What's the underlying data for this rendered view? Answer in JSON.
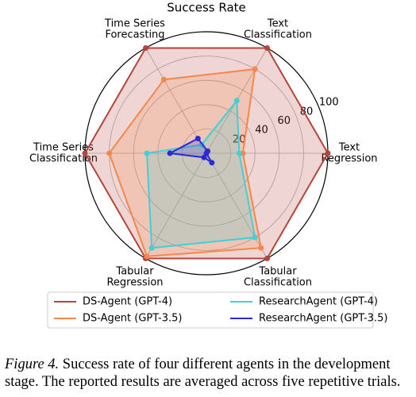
{
  "chart_data": {
    "type": "radar",
    "title": "Success Rate",
    "categories": [
      [
        "Text",
        "Regression"
      ],
      [
        "Text",
        "Classification"
      ],
      [
        "Time Series",
        "Forecasting"
      ],
      [
        "Time Series",
        "Classification"
      ],
      [
        "Tabular",
        "Regression"
      ],
      [
        "Tabular",
        "Classification"
      ]
    ],
    "rlim": [
      0,
      100
    ],
    "rticks": [
      20,
      40,
      60,
      80,
      100
    ],
    "grid": true,
    "series": [
      {
        "name": "DS-Agent (GPT-4)",
        "color": "#b5443a",
        "values": [
          100,
          100,
          100,
          100,
          100,
          100
        ]
      },
      {
        "name": "DS-Agent (GPT-3.5)",
        "color": "#f4874b",
        "values": [
          30,
          80,
          70,
          80,
          98,
          90
        ]
      },
      {
        "name": "ResearchAgent (GPT-4)",
        "color": "#3fd0d8",
        "values": [
          27,
          50,
          8,
          49,
          90,
          80
        ]
      },
      {
        "name": "ResearchAgent (GPT-3.5)",
        "color": "#2b2bd6",
        "values": [
          0,
          2,
          14,
          30,
          4,
          9
        ]
      }
    ]
  },
  "caption": {
    "label": "Figure 4.",
    "text": "Success rate of four different agents in the development stage. The reported results are averaged across five repetitive trials."
  }
}
